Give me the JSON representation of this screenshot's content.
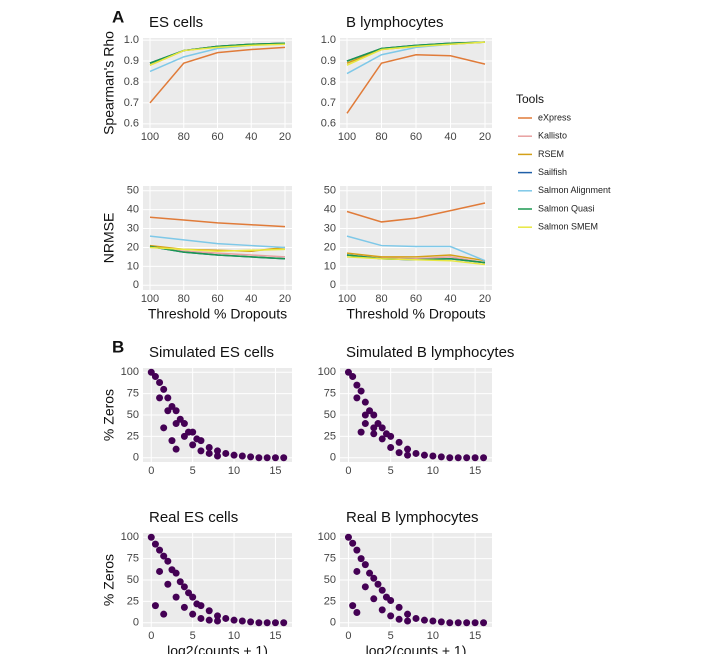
{
  "panel_labels": [
    "A",
    "B"
  ],
  "legend_title": "Tools",
  "chart_data": [
    {
      "type": "line",
      "title": "ES cells",
      "y_label": "Spearman's Rho",
      "categories": [
        "100",
        "80",
        "60",
        "40",
        "20"
      ],
      "ylim": [
        0.58,
        1.01
      ],
      "yticks": [
        {
          "value": 1,
          "label": "1.0"
        },
        0.9,
        0.8,
        0.7,
        0.6
      ],
      "grid": true,
      "series": [
        {
          "name": "eXpress",
          "color": "#e07b39",
          "values": [
            0.7,
            0.89,
            0.94,
            0.955,
            0.965
          ]
        },
        {
          "name": "Kallisto",
          "color": "#e8a0a0",
          "values": [
            0.89,
            0.95,
            0.97,
            0.98,
            0.985
          ]
        },
        {
          "name": "RSEM",
          "color": "#d4a017",
          "values": [
            0.88,
            0.95,
            0.97,
            0.98,
            0.985
          ]
        },
        {
          "name": "Sailfish",
          "color": "#1f5fa8",
          "values": [
            0.89,
            0.95,
            0.97,
            0.98,
            0.985
          ]
        },
        {
          "name": "Salmon Alignment",
          "color": "#7ec8e8",
          "values": [
            0.85,
            0.92,
            0.96,
            0.975,
            0.985
          ]
        },
        {
          "name": "Salmon Quasi",
          "color": "#1a9850",
          "values": [
            0.89,
            0.95,
            0.97,
            0.98,
            0.985
          ]
        },
        {
          "name": "Salmon SMEM",
          "color": "#e8e840",
          "values": [
            0.88,
            0.95,
            0.965,
            0.975,
            0.98
          ]
        }
      ]
    },
    {
      "type": "line",
      "title": "B lymphocytes",
      "categories": [
        "100",
        "80",
        "60",
        "40",
        "20"
      ],
      "ylim": [
        0.58,
        1.01
      ],
      "yticks": [
        {
          "value": 1,
          "label": "1.0"
        },
        0.9,
        0.8,
        0.7,
        0.6
      ],
      "grid": true,
      "series": [
        {
          "name": "eXpress",
          "color": "#e07b39",
          "values": [
            0.65,
            0.89,
            0.93,
            0.925,
            0.885
          ]
        },
        {
          "name": "Kallisto",
          "color": "#e8a0a0",
          "values": [
            0.9,
            0.96,
            0.975,
            0.985,
            0.99
          ]
        },
        {
          "name": "RSEM",
          "color": "#d4a017",
          "values": [
            0.89,
            0.955,
            0.97,
            0.98,
            0.99
          ]
        },
        {
          "name": "Sailfish",
          "color": "#1f5fa8",
          "values": [
            0.9,
            0.96,
            0.975,
            0.985,
            0.99
          ]
        },
        {
          "name": "Salmon Alignment",
          "color": "#7ec8e8",
          "values": [
            0.84,
            0.93,
            0.965,
            0.98,
            0.99
          ]
        },
        {
          "name": "Salmon Quasi",
          "color": "#1a9850",
          "values": [
            0.9,
            0.96,
            0.975,
            0.985,
            0.99
          ]
        },
        {
          "name": "Salmon SMEM",
          "color": "#e8e840",
          "values": [
            0.88,
            0.955,
            0.97,
            0.98,
            0.99
          ]
        }
      ]
    },
    {
      "type": "line",
      "y_label": "NRMSE",
      "x_label": "Threshold % Dropouts",
      "categories": [
        "100",
        "80",
        "60",
        "40",
        "20"
      ],
      "ylim": [
        -2.5,
        52.5
      ],
      "yticks": [
        50,
        40,
        30,
        20,
        10,
        0
      ],
      "grid": true,
      "series": [
        {
          "name": "eXpress",
          "color": "#e07b39",
          "values": [
            36,
            34.5,
            33,
            32,
            31
          ]
        },
        {
          "name": "Kallisto",
          "color": "#e8a0a0",
          "values": [
            21,
            18,
            17,
            16,
            15
          ]
        },
        {
          "name": "RSEM",
          "color": "#d4a017",
          "values": [
            21,
            19,
            18.5,
            18,
            20
          ]
        },
        {
          "name": "Sailfish",
          "color": "#1f5fa8",
          "values": [
            20.5,
            17.5,
            16,
            15,
            14
          ]
        },
        {
          "name": "Salmon Alignment",
          "color": "#7ec8e8",
          "values": [
            26,
            24,
            22,
            21,
            20
          ]
        },
        {
          "name": "Salmon Quasi",
          "color": "#1a9850",
          "values": [
            20.5,
            17.5,
            16,
            15,
            14
          ]
        },
        {
          "name": "Salmon SMEM",
          "color": "#e8e840",
          "values": [
            20,
            19,
            18,
            18.5,
            19
          ]
        }
      ]
    },
    {
      "type": "line",
      "x_label": "Threshold % Dropouts",
      "categories": [
        "100",
        "80",
        "60",
        "40",
        "20"
      ],
      "ylim": [
        -2.5,
        52.5
      ],
      "yticks": [
        50,
        40,
        30,
        20,
        10,
        0
      ],
      "grid": true,
      "series": [
        {
          "name": "eXpress",
          "color": "#e07b39",
          "values": [
            39,
            33.5,
            35.5,
            39.5,
            43.5
          ]
        },
        {
          "name": "Kallisto",
          "color": "#e8a0a0",
          "values": [
            16,
            14.5,
            14,
            15,
            12
          ]
        },
        {
          "name": "RSEM",
          "color": "#d4a017",
          "values": [
            17,
            15,
            15,
            16,
            13
          ]
        },
        {
          "name": "Sailfish",
          "color": "#1f5fa8",
          "values": [
            16,
            14,
            13.5,
            14,
            12
          ]
        },
        {
          "name": "Salmon Alignment",
          "color": "#7ec8e8",
          "values": [
            26,
            21,
            20.5,
            20.5,
            13
          ]
        },
        {
          "name": "Salmon Quasi",
          "color": "#1a9850",
          "values": [
            16,
            14,
            13.5,
            14,
            12
          ]
        },
        {
          "name": "Salmon SMEM",
          "color": "#e8e840",
          "values": [
            15,
            14,
            13.5,
            13,
            11
          ]
        }
      ]
    },
    {
      "type": "scatter",
      "title": "Simulated ES cells",
      "y_label": "% Zeros",
      "color": "#440154",
      "xlim": [
        -1,
        17
      ],
      "ylim": [
        -5,
        105
      ],
      "xticks": [
        0,
        5,
        10,
        15
      ],
      "yticks": [
        100,
        75,
        50,
        25,
        0
      ],
      "grid": true,
      "x": [
        0,
        0.5,
        1,
        1,
        1.5,
        2,
        2,
        2.5,
        3,
        3,
        3.5,
        4,
        4,
        4.5,
        5,
        5,
        5.5,
        6,
        6,
        7,
        7,
        8,
        8,
        9,
        10,
        11,
        12,
        13,
        14,
        15,
        16,
        1.5,
        2.5,
        3
      ],
      "y": [
        100,
        95,
        88,
        70,
        80,
        70,
        55,
        60,
        55,
        40,
        45,
        40,
        25,
        30,
        30,
        15,
        22,
        20,
        8,
        12,
        5,
        8,
        2,
        5,
        3,
        2,
        1,
        0,
        0,
        0,
        0,
        35,
        20,
        10
      ]
    },
    {
      "type": "scatter",
      "title": "Simulated B lymphocytes",
      "color": "#440154",
      "xlim": [
        -1,
        17
      ],
      "ylim": [
        -5,
        105
      ],
      "xticks": [
        0,
        5,
        10,
        15
      ],
      "yticks": [
        100,
        75,
        50,
        25,
        0
      ],
      "grid": true,
      "x": [
        0,
        0.5,
        1,
        1,
        1.5,
        2,
        2,
        2.5,
        3,
        3,
        3.5,
        4,
        4,
        4.5,
        5,
        5,
        6,
        6,
        7,
        7,
        8,
        9,
        10,
        11,
        12,
        13,
        14,
        15,
        16,
        2,
        3,
        1.5
      ],
      "y": [
        100,
        95,
        85,
        70,
        78,
        65,
        50,
        55,
        50,
        35,
        40,
        35,
        22,
        28,
        25,
        12,
        18,
        6,
        10,
        3,
        5,
        3,
        2,
        1,
        0,
        0,
        0,
        0,
        0,
        40,
        28,
        30
      ]
    },
    {
      "type": "scatter",
      "title": "Real ES cells",
      "y_label": "% Zeros",
      "x_label": "log2(counts + 1)",
      "color": "#440154",
      "xlim": [
        -1,
        17
      ],
      "ylim": [
        -5,
        105
      ],
      "xticks": [
        0,
        5,
        10,
        15
      ],
      "yticks": [
        100,
        75,
        50,
        25,
        0
      ],
      "grid": true,
      "x": [
        0,
        0.5,
        1,
        1,
        1.5,
        2,
        2,
        2.5,
        3,
        3,
        3.5,
        4,
        4,
        4.5,
        5,
        5,
        5.5,
        6,
        6,
        7,
        7,
        8,
        8,
        9,
        10,
        11,
        12,
        13,
        14,
        15,
        16,
        0.5,
        1.5
      ],
      "y": [
        100,
        92,
        85,
        60,
        78,
        72,
        45,
        62,
        58,
        30,
        48,
        42,
        18,
        35,
        30,
        10,
        22,
        20,
        5,
        14,
        3,
        8,
        2,
        5,
        3,
        2,
        1,
        0,
        0,
        0,
        0,
        20,
        10
      ]
    },
    {
      "type": "scatter",
      "title": "Real B lymphocytes",
      "x_label": "log2(counts + 1)",
      "color": "#440154",
      "xlim": [
        -1,
        17
      ],
      "ylim": [
        -5,
        105
      ],
      "xticks": [
        0,
        5,
        10,
        15
      ],
      "yticks": [
        100,
        75,
        50,
        25,
        0
      ],
      "grid": true,
      "x": [
        0,
        0.5,
        1,
        1,
        1.5,
        2,
        2,
        2.5,
        3,
        3,
        3.5,
        4,
        4,
        4.5,
        5,
        5,
        6,
        6,
        7,
        7,
        8,
        9,
        10,
        11,
        12,
        13,
        14,
        15,
        16,
        0.5,
        1
      ],
      "y": [
        100,
        93,
        85,
        60,
        75,
        68,
        42,
        58,
        52,
        28,
        45,
        38,
        15,
        30,
        26,
        8,
        18,
        4,
        10,
        2,
        5,
        3,
        2,
        1,
        0,
        0,
        0,
        0,
        0,
        20,
        12
      ]
    }
  ]
}
